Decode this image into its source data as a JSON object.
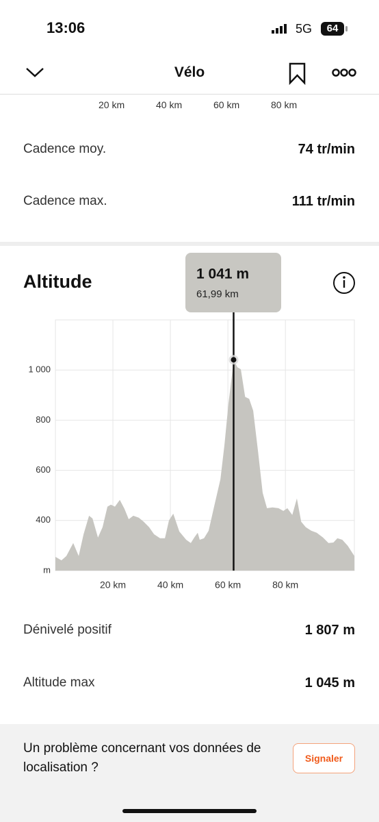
{
  "status": {
    "time": "13:06",
    "network": "5G",
    "battery": "64"
  },
  "nav": {
    "title": "Vélo"
  },
  "top_axis_labels": [
    "20 km",
    "40 km",
    "60 km",
    "80 km"
  ],
  "stats_top": [
    {
      "label": "Cadence moy.",
      "value": "74 tr/min"
    },
    {
      "label": "Cadence max.",
      "value": "111 tr/min"
    }
  ],
  "chart_data": {
    "type": "area",
    "title": "Altitude",
    "color": "#c6c5c0",
    "x": [
      0,
      2.1,
      3.8,
      6.2,
      8.1,
      9.8,
      11.7,
      12.9,
      14.8,
      16.4,
      18.1,
      19.3,
      20.7,
      22.4,
      24.0,
      25.5,
      27.1,
      29.0,
      30.7,
      32.6,
      34.3,
      36.4,
      38.1,
      39.5,
      41.0,
      43.1,
      45.5,
      47.1,
      48.3,
      49.5,
      50.2,
      51.7,
      53.3,
      55.2,
      57.4,
      58.8,
      60.2,
      61.7,
      62.0,
      63.3,
      64.5,
      66.0,
      67.4,
      68.8,
      70.5,
      72.1,
      73.6,
      75.5,
      77.6,
      79.3,
      80.7,
      82.4,
      84.0,
      85.5,
      87.1,
      89.0,
      90.9,
      93.1,
      95.0,
      96.7,
      98.1,
      99.8,
      101.7,
      104.0
    ],
    "values": [
      255,
      241,
      258,
      310,
      258,
      345,
      419,
      408,
      332,
      373,
      455,
      463,
      455,
      482,
      447,
      405,
      419,
      411,
      395,
      373,
      345,
      329,
      329,
      400,
      427,
      356,
      323,
      310,
      332,
      351,
      323,
      329,
      359,
      455,
      564,
      701,
      866,
      1008,
      1041,
      1011,
      1003,
      893,
      885,
      838,
      674,
      510,
      449,
      452,
      449,
      438,
      449,
      422,
      488,
      395,
      373,
      359,
      351,
      332,
      310,
      312,
      329,
      323,
      299,
      258
    ],
    "xlim": [
      0,
      104
    ],
    "ylim": [
      200,
      1200
    ],
    "xticks": [
      {
        "value": 20,
        "label": "20 km"
      },
      {
        "value": 40,
        "label": "40 km"
      },
      {
        "value": 60,
        "label": "60 km"
      },
      {
        "value": 80,
        "label": "80 km"
      }
    ],
    "yticks": [
      {
        "value": 200,
        "label": "m"
      },
      400,
      600,
      800,
      {
        "value": 1000,
        "label": "1 000"
      }
    ],
    "grid": true,
    "highlight": {
      "x": 61.99,
      "y": 1041,
      "label": "1 041 m",
      "x_label": "61,99 km"
    }
  },
  "stats_bottom": [
    {
      "label": "Dénivelé positif",
      "value": "1 807 m"
    },
    {
      "label": "Altitude max",
      "value": "1 045 m"
    }
  ],
  "footer": {
    "message": "Un problème concernant vos données de localisation ?",
    "button": "Signaler"
  }
}
